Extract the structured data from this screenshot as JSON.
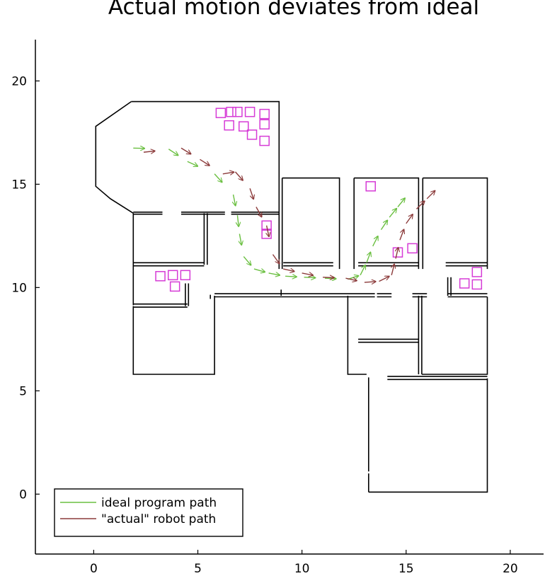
{
  "chart_data": {
    "type": "line",
    "title": "Actual motion deviates from ideal",
    "xlabel": "",
    "ylabel": "",
    "xlim": [
      -2.8,
      21.6
    ],
    "ylim": [
      -2.9,
      22.0
    ],
    "xticks": [
      0,
      5,
      10,
      15,
      20
    ],
    "yticks": [
      0,
      5,
      10,
      15,
      20
    ],
    "grid": false,
    "legend_position": "bottom-left",
    "series": [
      {
        "name": "ideal program path",
        "color": "#6abf40",
        "style": "arrows",
        "points": [
          [
            1.9,
            16.75
          ],
          [
            3.6,
            16.7
          ],
          [
            4.5,
            16.1
          ],
          [
            5.8,
            15.5
          ],
          [
            6.7,
            14.5
          ],
          [
            6.9,
            13.5
          ],
          [
            7.0,
            12.6
          ],
          [
            7.2,
            11.5
          ],
          [
            7.7,
            10.9
          ],
          [
            8.4,
            10.7
          ],
          [
            9.2,
            10.55
          ],
          [
            10.1,
            10.5
          ],
          [
            11.1,
            10.45
          ],
          [
            12.2,
            10.4
          ],
          [
            12.8,
            10.6
          ],
          [
            13.1,
            11.2
          ],
          [
            13.4,
            12.0
          ],
          [
            13.8,
            12.8
          ],
          [
            14.2,
            13.4
          ],
          [
            14.6,
            13.9
          ]
        ]
      },
      {
        "name": "\"actual\" robot path",
        "color": "#8b3a3a",
        "style": "arrows",
        "points": [
          [
            2.4,
            16.55
          ],
          [
            4.2,
            16.75
          ],
          [
            5.1,
            16.2
          ],
          [
            6.2,
            15.5
          ],
          [
            6.8,
            15.6
          ],
          [
            7.5,
            14.8
          ],
          [
            7.8,
            13.9
          ],
          [
            8.3,
            13.0
          ],
          [
            8.6,
            11.6
          ],
          [
            9.1,
            10.9
          ],
          [
            10.0,
            10.7
          ],
          [
            11.0,
            10.5
          ],
          [
            12.1,
            10.45
          ],
          [
            13.0,
            10.25
          ],
          [
            13.7,
            10.3
          ],
          [
            14.3,
            10.6
          ],
          [
            14.5,
            11.4
          ],
          [
            14.7,
            12.3
          ],
          [
            15.0,
            13.1
          ],
          [
            15.5,
            13.8
          ],
          [
            16.0,
            14.3
          ]
        ]
      }
    ],
    "markers": {
      "color": "#d63bd6",
      "shape": "square",
      "points": [
        [
          6.1,
          18.45
        ],
        [
          6.6,
          18.5
        ],
        [
          6.9,
          18.5
        ],
        [
          7.5,
          18.5
        ],
        [
          8.2,
          18.4
        ],
        [
          6.5,
          17.85
        ],
        [
          7.2,
          17.8
        ],
        [
          8.2,
          17.9
        ],
        [
          7.6,
          17.4
        ],
        [
          8.2,
          17.1
        ],
        [
          8.3,
          13.0
        ],
        [
          8.3,
          12.6
        ],
        [
          13.3,
          14.9
        ],
        [
          14.6,
          11.7
        ],
        [
          15.3,
          11.9
        ],
        [
          3.2,
          10.55
        ],
        [
          3.8,
          10.6
        ],
        [
          4.4,
          10.6
        ],
        [
          3.9,
          10.05
        ],
        [
          17.8,
          10.2
        ],
        [
          18.4,
          10.75
        ],
        [
          18.4,
          10.15
        ]
      ]
    },
    "floorplan": {
      "color": "#000000",
      "walls": [
        [
          [
            1.8,
            19.0
          ],
          [
            8.9,
            19.0
          ],
          [
            8.9,
            10.9
          ]
        ],
        [
          [
            1.8,
            19.0
          ],
          [
            0.1,
            17.8
          ],
          [
            0.1,
            14.9
          ],
          [
            0.8,
            14.3
          ],
          [
            1.9,
            13.6
          ]
        ],
        [
          [
            1.9,
            13.65
          ],
          [
            3.3,
            13.65
          ]
        ],
        [
          [
            1.9,
            13.55
          ],
          [
            3.3,
            13.55
          ]
        ],
        [
          [
            4.2,
            13.65
          ],
          [
            6.3,
            13.65
          ]
        ],
        [
          [
            4.2,
            13.55
          ],
          [
            6.3,
            13.55
          ]
        ],
        [
          [
            6.6,
            13.65
          ],
          [
            8.9,
            13.65
          ]
        ],
        [
          [
            6.6,
            13.55
          ],
          [
            8.9,
            13.55
          ]
        ],
        [
          [
            1.9,
            13.6
          ],
          [
            1.9,
            9.15
          ]
        ],
        [
          [
            1.9,
            11.2
          ],
          [
            5.3,
            11.2
          ]
        ],
        [
          [
            1.9,
            11.05
          ],
          [
            5.3,
            11.05
          ]
        ],
        [
          [
            5.3,
            13.6
          ],
          [
            5.3,
            11.1
          ]
        ],
        [
          [
            5.45,
            13.6
          ],
          [
            5.45,
            11.1
          ]
        ],
        [
          [
            1.9,
            9.2
          ],
          [
            4.5,
            9.2
          ]
        ],
        [
          [
            1.9,
            9.05
          ],
          [
            4.5,
            9.05
          ]
        ],
        [
          [
            4.4,
            10.2
          ],
          [
            4.4,
            9.1
          ]
        ],
        [
          [
            4.55,
            10.2
          ],
          [
            4.55,
            9.1
          ]
        ],
        [
          [
            5.6,
            9.65
          ],
          [
            5.6,
            9.45
          ]
        ],
        [
          [
            5.8,
            9.7
          ],
          [
            13.5,
            9.7
          ]
        ],
        [
          [
            5.8,
            9.55
          ],
          [
            13.5,
            9.55
          ]
        ],
        [
          [
            9.0,
            9.9
          ],
          [
            9.0,
            9.6
          ]
        ],
        [
          [
            1.9,
            9.1
          ],
          [
            1.9,
            5.8
          ],
          [
            5.8,
            5.8
          ],
          [
            5.8,
            9.6
          ]
        ],
        [
          [
            9.05,
            15.3
          ],
          [
            11.8,
            15.3
          ],
          [
            11.8,
            10.9
          ]
        ],
        [
          [
            9.05,
            15.3
          ],
          [
            9.05,
            10.9
          ]
        ],
        [
          [
            9.1,
            11.2
          ],
          [
            11.5,
            11.2
          ]
        ],
        [
          [
            9.1,
            11.05
          ],
          [
            11.5,
            11.05
          ]
        ],
        [
          [
            12.5,
            15.3
          ],
          [
            15.6,
            15.3
          ],
          [
            15.6,
            10.9
          ]
        ],
        [
          [
            12.5,
            15.3
          ],
          [
            12.5,
            10.9
          ]
        ],
        [
          [
            12.7,
            11.2
          ],
          [
            15.6,
            11.2
          ]
        ],
        [
          [
            12.7,
            11.05
          ],
          [
            15.6,
            11.05
          ]
        ],
        [
          [
            15.8,
            15.3
          ],
          [
            18.9,
            15.3
          ],
          [
            18.9,
            10.9
          ]
        ],
        [
          [
            15.8,
            15.3
          ],
          [
            15.8,
            10.9
          ]
        ],
        [
          [
            16.9,
            11.2
          ],
          [
            18.9,
            11.2
          ]
        ],
        [
          [
            16.9,
            11.05
          ],
          [
            18.9,
            11.05
          ]
        ],
        [
          [
            17.0,
            10.5
          ],
          [
            17.0,
            9.6
          ]
        ],
        [
          [
            17.15,
            10.5
          ],
          [
            17.15,
            9.6
          ]
        ],
        [
          [
            17.0,
            9.7
          ],
          [
            18.9,
            9.7
          ]
        ],
        [
          [
            17.0,
            9.55
          ],
          [
            18.9,
            9.55
          ]
        ],
        [
          [
            12.2,
            9.6
          ],
          [
            12.2,
            5.8
          ],
          [
            13.1,
            5.8
          ]
        ],
        [
          [
            12.7,
            7.5
          ],
          [
            15.6,
            7.5
          ]
        ],
        [
          [
            12.7,
            7.35
          ],
          [
            15.6,
            7.35
          ]
        ],
        [
          [
            13.6,
            9.7
          ],
          [
            14.3,
            9.7
          ]
        ],
        [
          [
            13.6,
            9.55
          ],
          [
            14.3,
            9.55
          ]
        ],
        [
          [
            15.3,
            9.7
          ],
          [
            16.0,
            9.7
          ]
        ],
        [
          [
            15.3,
            9.55
          ],
          [
            16.0,
            9.55
          ]
        ],
        [
          [
            15.6,
            9.6
          ],
          [
            15.6,
            5.8
          ]
        ],
        [
          [
            15.75,
            9.6
          ],
          [
            15.75,
            5.8
          ]
        ],
        [
          [
            15.75,
            5.8
          ],
          [
            18.9,
            5.8
          ],
          [
            18.9,
            9.55
          ]
        ],
        [
          [
            13.2,
            5.65
          ],
          [
            13.2,
            1.1
          ]
        ],
        [
          [
            14.1,
            5.7
          ],
          [
            18.9,
            5.7
          ]
        ],
        [
          [
            14.1,
            5.55
          ],
          [
            18.9,
            5.55
          ]
        ],
        [
          [
            13.2,
            0.1
          ],
          [
            18.9,
            0.1
          ],
          [
            18.9,
            5.6
          ]
        ],
        [
          [
            13.2,
            0.1
          ],
          [
            13.2,
            1.0
          ]
        ]
      ]
    },
    "legend": [
      {
        "label": "ideal program path",
        "color": "#6abf40"
      },
      {
        "label": "\"actual\" robot path",
        "color": "#8b3a3a"
      }
    ]
  }
}
